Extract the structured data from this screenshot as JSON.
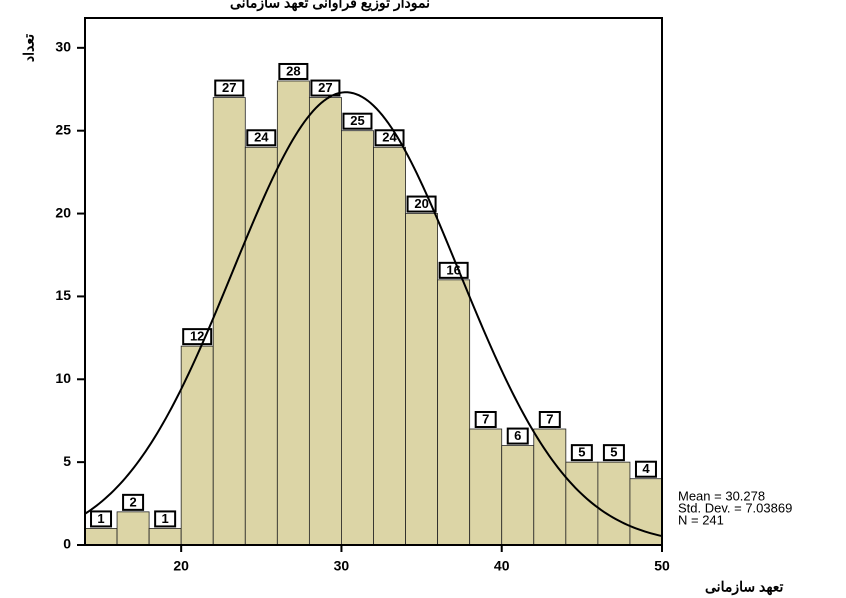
{
  "chart_data": {
    "type": "histogram",
    "title": "نمودار توزیع فراوانی تعهد سازمانی",
    "x_label": "تعهد سازمانی",
    "y_label": "تعداد",
    "bins": [
      14,
      16,
      18,
      20,
      22,
      24,
      26,
      28,
      30,
      32,
      34,
      36,
      38,
      40,
      42,
      44,
      46,
      48,
      50
    ],
    "values": [
      1,
      2,
      1,
      12,
      27,
      24,
      28,
      27,
      25,
      24,
      20,
      16,
      7,
      6,
      7,
      5,
      5,
      4
    ],
    "color": "#dcd5a6",
    "xlim": [
      14,
      50
    ],
    "ylim": [
      0,
      31.8
    ],
    "xticks": [
      20,
      30,
      40,
      50
    ],
    "yticks": [
      0,
      5,
      10,
      15,
      20,
      25,
      30
    ],
    "stats": [
      {
        "value": 30.278,
        "label": "Mean = 30.278"
      },
      {
        "value": 7.03869,
        "label": "Std. Dev. = 7.03869"
      },
      {
        "value": 241,
        "label": "N = 241"
      }
    ]
  }
}
